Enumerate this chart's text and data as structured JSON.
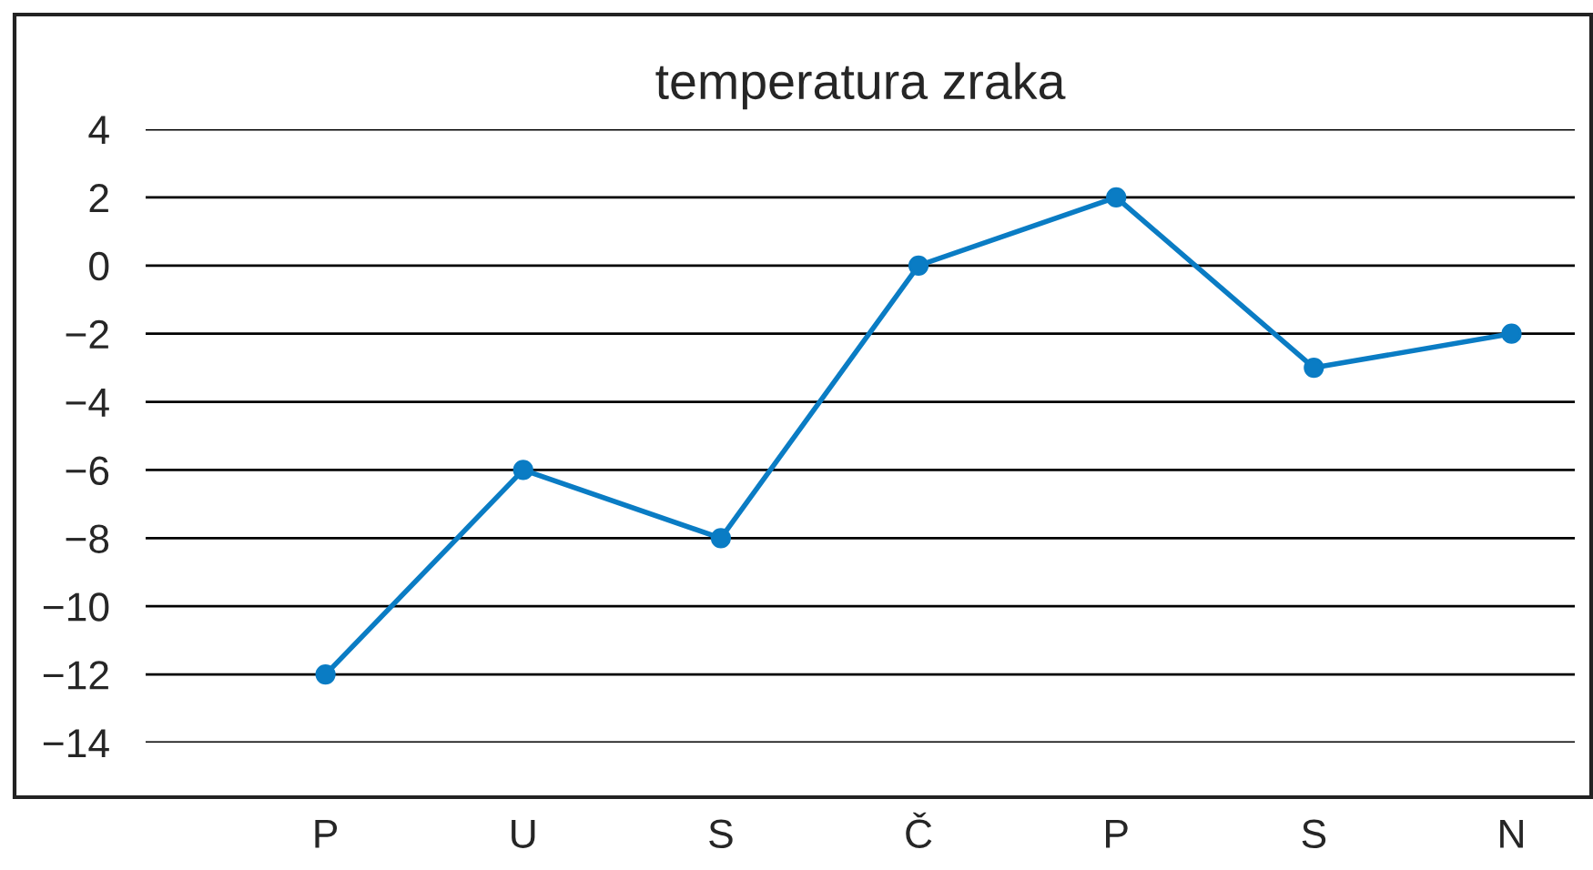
{
  "chart_data": {
    "type": "line",
    "title": "temperatura zraka",
    "categories": [
      "P",
      "U",
      "S",
      "Č",
      "P",
      "S",
      "N"
    ],
    "series": [
      {
        "color": "#0a7cc4",
        "values": [
          -12,
          -6,
          -8,
          0,
          2,
          -3,
          -2
        ]
      }
    ],
    "ylim": [
      -14,
      4
    ],
    "yticks": [
      -14,
      -12,
      -10,
      -8,
      -6,
      -4,
      -2,
      0,
      2,
      4
    ],
    "grid": "y",
    "marker": "circle",
    "line_style": "solid",
    "legend": false
  }
}
